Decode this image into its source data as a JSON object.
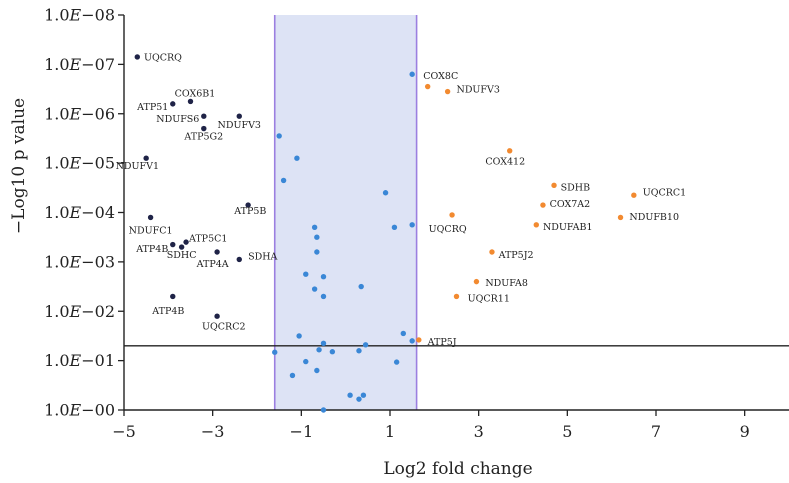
{
  "chart_data": {
    "type": "scatter",
    "title": "",
    "xlabel": "Log2 fold change",
    "ylabel": "−Log10 p value",
    "xlim": [
      -5,
      10
    ],
    "ylim": [
      0,
      8
    ],
    "x_ticks": [
      {
        "value": -5,
        "label": "−5"
      },
      {
        "value": -3,
        "label": "−3"
      },
      {
        "value": -1,
        "label": "−1"
      },
      {
        "value": 1,
        "label": "1"
      },
      {
        "value": 3,
        "label": "3"
      },
      {
        "value": 5,
        "label": "5"
      },
      {
        "value": 7,
        "label": "7"
      },
      {
        "value": 9,
        "label": "9"
      }
    ],
    "y_ticks": [
      {
        "value": 0,
        "label": "1.0E−00"
      },
      {
        "value": 1,
        "label": "1.0E−01"
      },
      {
        "value": 2,
        "label": "1.0E−02"
      },
      {
        "value": 3,
        "label": "1.0E−03"
      },
      {
        "value": 4,
        "label": "1.0E−04"
      },
      {
        "value": 5,
        "label": "1.0E−05"
      },
      {
        "value": 6,
        "label": "1.0E−06"
      },
      {
        "value": 7,
        "label": "1.0E−07"
      },
      {
        "value": 8,
        "label": "1.0E−08"
      }
    ],
    "fold_change_band": {
      "x_min": -1.6,
      "x_max": 1.6,
      "fill": "#dde3f5",
      "stroke": "#9b7fe0"
    },
    "p_threshold_line": {
      "y": 1.3,
      "color": "#222222"
    },
    "grid": false,
    "legend": "none",
    "series": [
      {
        "color": "#1f2347",
        "points": [
          {
            "x": -4.7,
            "y": 7.15,
            "label": "UQCRQ"
          },
          {
            "x": -3.5,
            "y": 6.25,
            "label": "COX6B1"
          },
          {
            "x": -3.9,
            "y": 6.2,
            "label": "ATP51"
          },
          {
            "x": -3.2,
            "y": 5.95,
            "label": "NDUFS6"
          },
          {
            "x": -2.4,
            "y": 5.95,
            "label": "NDUFV3"
          },
          {
            "x": -3.2,
            "y": 5.7,
            "label": "ATP5G2"
          },
          {
            "x": -4.5,
            "y": 5.1,
            "label": "NDUFV1"
          },
          {
            "x": -2.2,
            "y": 4.15,
            "label": "ATP5B"
          },
          {
            "x": -4.4,
            "y": 3.9,
            "label": "NDUFC1"
          },
          {
            "x": -3.6,
            "y": 3.4,
            "label": "ATP5C1"
          },
          {
            "x": -3.7,
            "y": 3.3,
            "label": "SDHC"
          },
          {
            "x": -3.9,
            "y": 3.35,
            "label": "ATP4B"
          },
          {
            "x": -2.9,
            "y": 3.2,
            "label": "ATP4A"
          },
          {
            "x": -2.4,
            "y": 3.05,
            "label": "SDHA"
          },
          {
            "x": -3.9,
            "y": 2.3,
            "label": "ATP4B"
          },
          {
            "x": -2.9,
            "y": 1.9,
            "label": "UQCRC2"
          }
        ]
      },
      {
        "color": "#3a87d6",
        "points": [
          {
            "x": 1.5,
            "y": 6.8
          },
          {
            "x": -1.5,
            "y": 5.55
          },
          {
            "x": -1.1,
            "y": 5.1
          },
          {
            "x": -1.4,
            "y": 4.65
          },
          {
            "x": 0.9,
            "y": 4.4
          },
          {
            "x": 1.5,
            "y": 3.75
          },
          {
            "x": 1.1,
            "y": 3.7
          },
          {
            "x": -0.7,
            "y": 3.7
          },
          {
            "x": -0.65,
            "y": 3.5
          },
          {
            "x": -0.65,
            "y": 3.2
          },
          {
            "x": -0.9,
            "y": 2.75
          },
          {
            "x": -0.5,
            "y": 2.7
          },
          {
            "x": 0.35,
            "y": 2.5
          },
          {
            "x": -0.7,
            "y": 2.45
          },
          {
            "x": -0.5,
            "y": 2.3
          },
          {
            "x": 1.3,
            "y": 1.55
          },
          {
            "x": -1.05,
            "y": 1.5
          },
          {
            "x": 1.5,
            "y": 1.4
          },
          {
            "x": -0.5,
            "y": 1.35
          },
          {
            "x": 0.45,
            "y": 1.32
          },
          {
            "x": -0.6,
            "y": 1.22
          },
          {
            "x": -0.3,
            "y": 1.18
          },
          {
            "x": 0.3,
            "y": 1.2
          },
          {
            "x": -1.6,
            "y": 1.17
          },
          {
            "x": -0.9,
            "y": 0.98
          },
          {
            "x": 1.15,
            "y": 0.97
          },
          {
            "x": -0.65,
            "y": 0.8
          },
          {
            "x": -1.2,
            "y": 0.7
          },
          {
            "x": 0.1,
            "y": 0.3
          },
          {
            "x": 0.4,
            "y": 0.3
          },
          {
            "x": 0.3,
            "y": 0.22
          },
          {
            "x": -0.5,
            "y": 0.0
          }
        ]
      },
      {
        "color": "#f28a30",
        "points": [
          {
            "x": 1.85,
            "y": 6.55
          },
          {
            "x": 2.3,
            "y": 6.45,
            "label": "NDUFV3"
          },
          {
            "x": 3.7,
            "y": 5.25,
            "label": "COX412"
          },
          {
            "x": 4.7,
            "y": 4.55,
            "label": "SDHB"
          },
          {
            "x": 6.5,
            "y": 4.35,
            "label": "UQCRC1"
          },
          {
            "x": 4.45,
            "y": 4.15,
            "label": "COX7A2"
          },
          {
            "x": 6.2,
            "y": 3.9,
            "label": "NDUFB10"
          },
          {
            "x": 2.4,
            "y": 3.95,
            "label": "UQCRQ"
          },
          {
            "x": 4.3,
            "y": 3.75,
            "label": "NDUFAB1"
          },
          {
            "x": 3.3,
            "y": 3.2,
            "label": "ATP5J2"
          },
          {
            "x": 2.95,
            "y": 2.6,
            "label": "NDUFA8"
          },
          {
            "x": 2.5,
            "y": 2.3,
            "label": "UQCR11"
          },
          {
            "x": 1.65,
            "y": 1.42,
            "label": "ATP5J"
          }
        ]
      }
    ],
    "labels": [
      {
        "text": "UQCRQ",
        "x": -4.55,
        "y": 7.15,
        "anchor": "start"
      },
      {
        "text": "COX6B1",
        "x": -3.4,
        "y": 6.42,
        "anchor": "middle"
      },
      {
        "text": "ATP51",
        "x": -4.0,
        "y": 6.15,
        "anchor": "end"
      },
      {
        "text": "NDUFS6",
        "x": -3.3,
        "y": 5.9,
        "anchor": "end"
      },
      {
        "text": "NDUFV3",
        "x": -2.4,
        "y": 5.78,
        "anchor": "middle"
      },
      {
        "text": "ATP5G2",
        "x": -3.2,
        "y": 5.55,
        "anchor": "middle"
      },
      {
        "text": "NDUFV1",
        "x": -4.7,
        "y": 4.95,
        "anchor": "middle"
      },
      {
        "text": "ATP5B",
        "x": -2.15,
        "y": 4.04,
        "anchor": "middle"
      },
      {
        "text": "NDUFC1",
        "x": -4.4,
        "y": 3.65,
        "anchor": "middle"
      },
      {
        "text": "ATP5C1",
        "x": -3.1,
        "y": 3.48,
        "anchor": "middle"
      },
      {
        "text": "ATP4B",
        "x": -4.0,
        "y": 3.27,
        "anchor": "end"
      },
      {
        "text": "SDHC",
        "x": -3.7,
        "y": 3.15,
        "anchor": "middle"
      },
      {
        "text": "ATP4A",
        "x": -3.0,
        "y": 2.97,
        "anchor": "middle"
      },
      {
        "text": "SDHA",
        "x": -2.2,
        "y": 3.12,
        "anchor": "start"
      },
      {
        "text": "ATP4B",
        "x": -4.0,
        "y": 2.02,
        "anchor": "middle"
      },
      {
        "text": "UQCRC2",
        "x": -2.75,
        "y": 1.7,
        "anchor": "middle"
      },
      {
        "text": "COX8C",
        "x": 1.75,
        "y": 6.77,
        "anchor": "start"
      },
      {
        "text": "NDUFV3",
        "x": 2.5,
        "y": 6.5,
        "anchor": "start"
      },
      {
        "text": "COX412",
        "x": 3.6,
        "y": 5.04,
        "anchor": "middle"
      },
      {
        "text": "SDHB",
        "x": 4.85,
        "y": 4.52,
        "anchor": "start"
      },
      {
        "text": "UQCRC1",
        "x": 6.7,
        "y": 4.42,
        "anchor": "start"
      },
      {
        "text": "COX7A2",
        "x": 4.6,
        "y": 4.18,
        "anchor": "start"
      },
      {
        "text": "NDUFB10",
        "x": 6.4,
        "y": 3.92,
        "anchor": "start"
      },
      {
        "text": "UQCRQ",
        "x": 2.3,
        "y": 3.68,
        "anchor": "middle"
      },
      {
        "text": "NDUFAB1",
        "x": 4.45,
        "y": 3.72,
        "anchor": "start"
      },
      {
        "text": "ATP5J2",
        "x": 3.45,
        "y": 3.15,
        "anchor": "start"
      },
      {
        "text": "NDUFA8",
        "x": 3.15,
        "y": 2.58,
        "anchor": "start"
      },
      {
        "text": "UQCR11",
        "x": 2.75,
        "y": 2.27,
        "anchor": "start"
      },
      {
        "text": "ATP5J",
        "x": 1.85,
        "y": 1.39,
        "anchor": "start"
      }
    ]
  }
}
